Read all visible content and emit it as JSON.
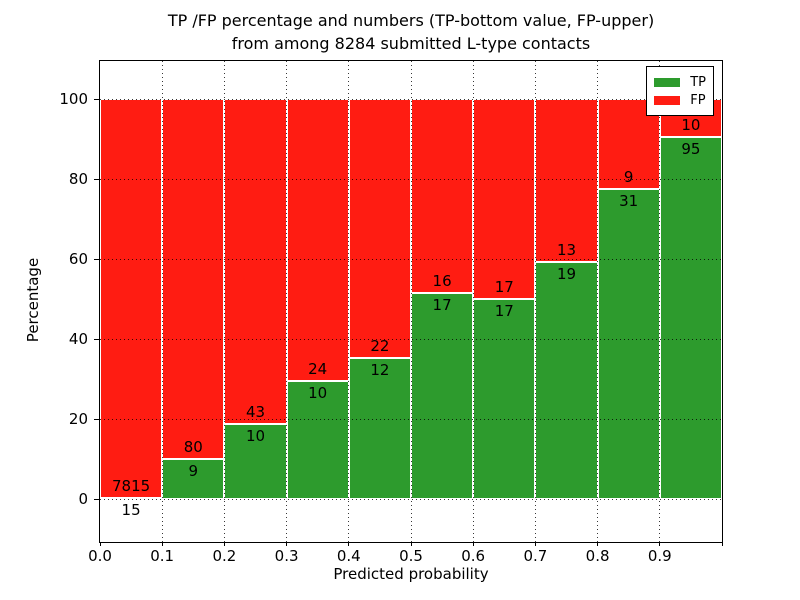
{
  "figure": {
    "title_line1": "TP /FP percentage and numbers (TP-bottom value, FP-upper)",
    "title_line2": "from among 8284 submitted L-type contacts"
  },
  "chart_data": {
    "type": "bar",
    "subtype": "stacked-percentage-histogram",
    "title": "TP /FP percentage and numbers (TP-bottom value, FP-upper)\nfrom among 8284 submitted L-type contacts",
    "xlabel": "Predicted probability",
    "ylabel": "Percentage",
    "x_tick_labels": [
      "0.0",
      "0.1",
      "0.2",
      "0.3",
      "0.4",
      "0.5",
      "0.6",
      "0.7",
      "0.8",
      "0.9"
    ],
    "y_ticks": [
      0,
      20,
      40,
      60,
      80,
      100
    ],
    "xlim": [
      0.0,
      1.0
    ],
    "ylim": [
      -10.75,
      109.5
    ],
    "grid": "dotted",
    "bin_starts": [
      0.0,
      0.1,
      0.2,
      0.3,
      0.4,
      0.5,
      0.6,
      0.7,
      0.8,
      0.9
    ],
    "bin_width": 0.1,
    "series": [
      {
        "name": "TP",
        "color": "#2d9b2d",
        "counts": [
          15,
          9,
          10,
          10,
          12,
          17,
          17,
          19,
          31,
          95
        ]
      },
      {
        "name": "FP",
        "color": "#ff1c12",
        "counts": [
          7815,
          80,
          43,
          24,
          22,
          16,
          17,
          13,
          9,
          10
        ]
      }
    ],
    "tp_percent": [
      0.19,
      10.11,
      18.87,
      29.41,
      35.29,
      51.52,
      50.0,
      59.38,
      77.5,
      90.48
    ],
    "total_contacts": 8284,
    "legend": {
      "position": "upper right",
      "entries": [
        "TP",
        "FP"
      ]
    }
  }
}
